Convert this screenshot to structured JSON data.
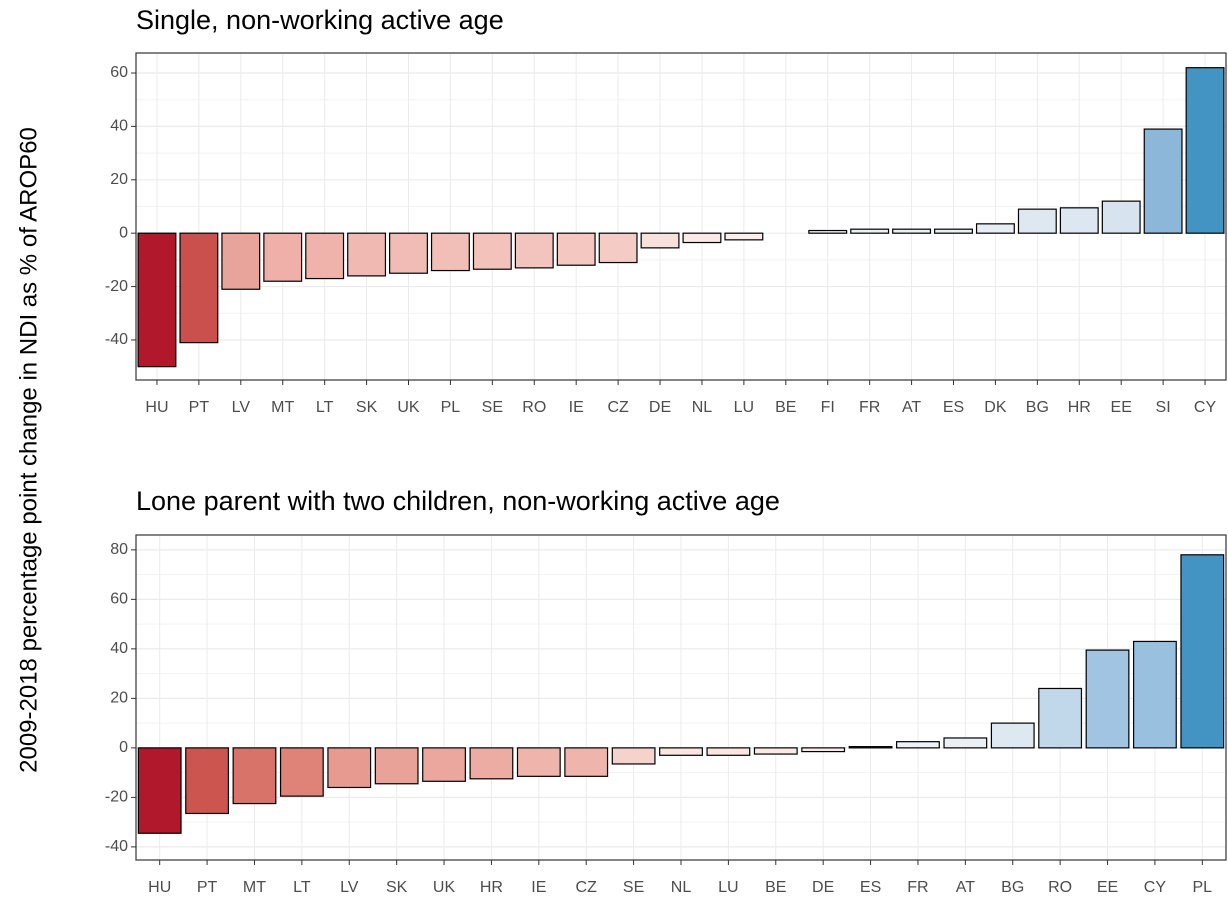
{
  "ylabel": "2009-2018 percentage point change in NDI as % of AROP60",
  "chart_data": [
    {
      "type": "bar",
      "title": "Single, non-working active age",
      "categories": [
        "HU",
        "PT",
        "LV",
        "MT",
        "LT",
        "SK",
        "UK",
        "PL",
        "SE",
        "RO",
        "IE",
        "CZ",
        "DE",
        "NL",
        "LU",
        "BE",
        "FI",
        "FR",
        "AT",
        "ES",
        "DK",
        "BG",
        "HR",
        "EE",
        "SI",
        "CY"
      ],
      "values": [
        -50,
        -41,
        -21,
        -18,
        -17,
        -16,
        -15,
        -14,
        -13.5,
        -13,
        -12,
        -11,
        -5.5,
        -3.5,
        -2.5,
        0,
        1,
        1.5,
        1.5,
        1.5,
        3.5,
        9,
        9.5,
        12,
        39,
        62
      ],
      "colors": [
        "#b2182b",
        "#c9504d",
        "#e8a49b",
        "#eeb0a8",
        "#efb3ab",
        "#f0b9b1",
        "#f1bcb5",
        "#f2bfb8",
        "#f3c2bb",
        "#f3c4be",
        "#f4c7c1",
        "#f5cbc5",
        "#f8e0dc",
        "#fae9e6",
        "#fbeeec",
        "#f7f7f7",
        "#eef2f6",
        "#ebf0f5",
        "#ebf0f5",
        "#ebf0f5",
        "#e6edf4",
        "#dde8f1",
        "#dce7f1",
        "#d7e4ef",
        "#8db7d9",
        "#4393c3"
      ],
      "ylim": [
        -55,
        67.5
      ],
      "yticks": [
        -40,
        -20,
        0,
        20,
        40,
        60
      ],
      "grid": true
    },
    {
      "type": "bar",
      "title": "Lone parent with two children, non-working active age",
      "categories": [
        "HU",
        "PT",
        "MT",
        "LT",
        "LV",
        "SK",
        "UK",
        "HR",
        "IE",
        "CZ",
        "SE",
        "NL",
        "LU",
        "BE",
        "DE",
        "ES",
        "FR",
        "AT",
        "BG",
        "RO",
        "EE",
        "CY",
        "PL"
      ],
      "values": [
        -34.5,
        -26.5,
        -22.5,
        -19.5,
        -16,
        -14.5,
        -13.5,
        -12.5,
        -11.5,
        -11.5,
        -6.5,
        -3,
        -3,
        -2.5,
        -1.5,
        0.5,
        2.5,
        4,
        10,
        24,
        39.5,
        43,
        78
      ],
      "colors": [
        "#b2182b",
        "#cc554f",
        "#d8736a",
        "#df8378",
        "#e79b90",
        "#e9a298",
        "#eba79e",
        "#ecaca3",
        "#efb4ac",
        "#efb4ac",
        "#f6d2cd",
        "#f9e6e3",
        "#f9e6e3",
        "#faeae7",
        "#fbefed",
        "#f4f5f7",
        "#eef2f6",
        "#ebf0f5",
        "#dde8f1",
        "#c0d8ea",
        "#a0c4e1",
        "#99c0df",
        "#4393c3"
      ],
      "ylim": [
        -45.3,
        86
      ],
      "yticks": [
        -40,
        -20,
        0,
        20,
        40,
        60,
        80
      ],
      "grid": true
    }
  ]
}
